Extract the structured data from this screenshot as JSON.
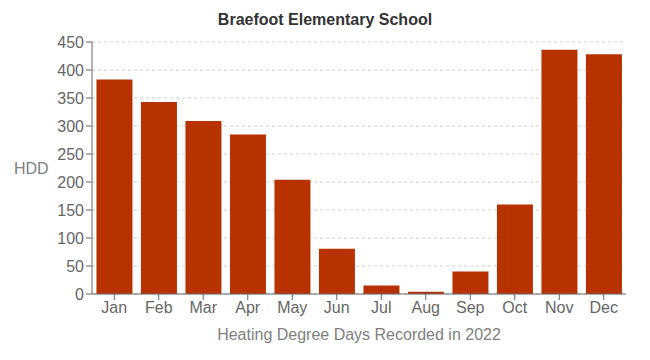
{
  "chart_data": {
    "type": "bar",
    "title": "Braefoot Elementary School",
    "xlabel": "Heating Degree Days Recorded in 2022",
    "ylabel": "HDD",
    "categories": [
      "Jan",
      "Feb",
      "Mar",
      "Apr",
      "May",
      "Jun",
      "Jul",
      "Aug",
      "Sep",
      "Oct",
      "Nov",
      "Dec"
    ],
    "values": [
      383,
      343,
      309,
      285,
      204,
      81,
      15,
      4,
      40,
      160,
      436,
      428
    ],
    "color": "#b83200",
    "ylim": [
      0,
      450
    ],
    "yticks": [
      0,
      50,
      100,
      150,
      200,
      250,
      300,
      350,
      400,
      450
    ],
    "grid": true
  }
}
